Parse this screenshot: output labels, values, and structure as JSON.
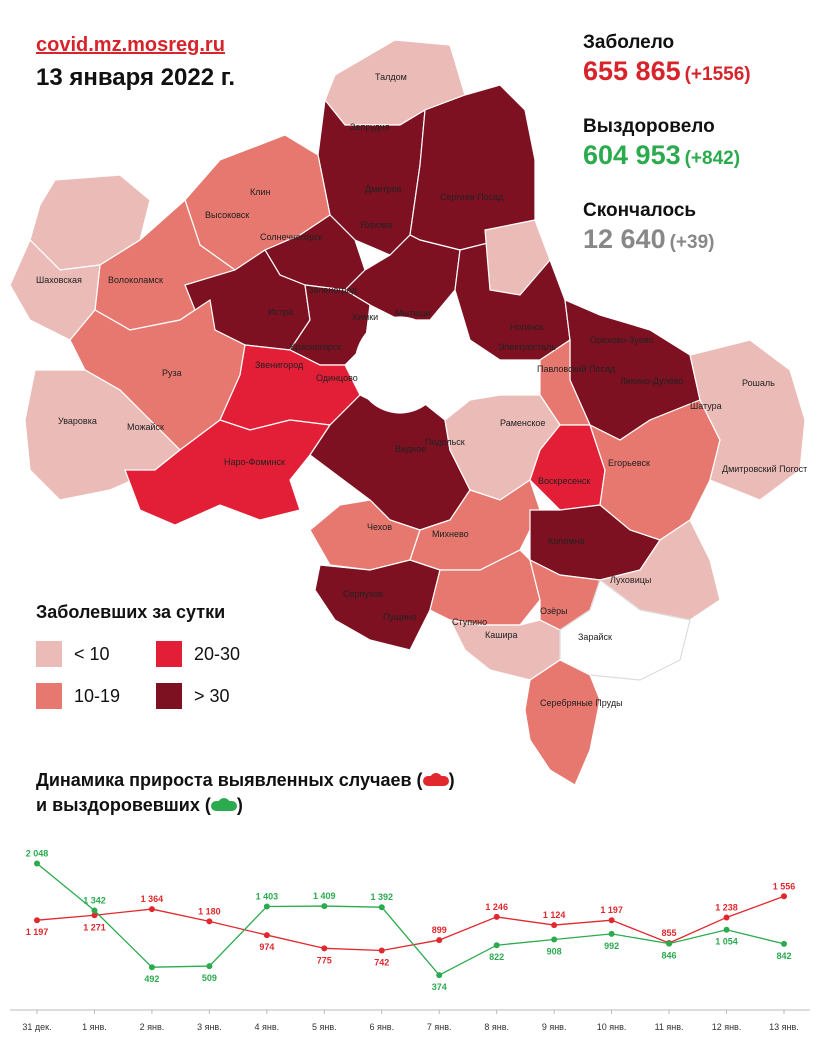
{
  "header": {
    "site": "covid.mz.mosreg.ru",
    "date": "13 января 2022 г."
  },
  "stats": {
    "infected_label": "Заболело",
    "infected_value": "655 865",
    "infected_delta": "(+1556)",
    "recovered_label": "Выздоровело",
    "recovered_value": "604 953",
    "recovered_delta": "(+842)",
    "deaths_label": "Скончалось",
    "deaths_value": "12 640",
    "deaths_delta": "(+39)"
  },
  "colors": {
    "red": "#d7242b",
    "green": "#2bab4e",
    "gray": "#888888",
    "lt10": "#ebbcb7",
    "r10_19": "#e6786f",
    "r20_30": "#e21f36",
    "gt30": "#7e1121"
  },
  "map": {
    "towns": [
      "Талдом",
      "Запрудня",
      "Дмитров",
      "Сергиев Посад",
      "Клин",
      "Высоковск",
      "Яхрома",
      "Солнечногорск",
      "Шаховская",
      "Волоколамск",
      "Зеленоград",
      "Истра",
      "Химки",
      "Мытищи",
      "Ногинск",
      "Электросталь",
      "Красногорск",
      "Звенигород",
      "Одинцово",
      "Орехово-Зуево",
      "Павловский Посад",
      "Ликино-Дулёво",
      "Руза",
      "Рошаль",
      "Шатура",
      "Уваровка",
      "Можайск",
      "Раменское",
      "Наро-Фоминск",
      "Видное",
      "Подольск",
      "Воскресенск",
      "Егорьевск",
      "Дмитровский Погост",
      "Чехов",
      "Михнево",
      "Коломна",
      "Луховицы",
      "Серпухов",
      "Пущино",
      "Ступино",
      "Озёры",
      "Кашира",
      "Зарайск",
      "Серебряные Пруды"
    ]
  },
  "legend": {
    "title": "Заболевших за сутки",
    "items": [
      {
        "label": "< 10",
        "color": "#ebbcb7"
      },
      {
        "label": "20-30",
        "color": "#e21f36"
      },
      {
        "label": "10-19",
        "color": "#e6786f"
      },
      {
        "label": "> 30",
        "color": "#7e1121"
      }
    ]
  },
  "dynamics_title": {
    "line1": "Динамика прироста выявленных случаев (",
    "line2": "и выздоровевших ("
  },
  "chart_data": {
    "type": "line",
    "categories": [
      "31 дек.",
      "1 янв.",
      "2 янв.",
      "3 янв.",
      "4 янв.",
      "5 янв.",
      "6 янв.",
      "7 янв.",
      "8 янв.",
      "9 янв.",
      "10 янв.",
      "11 янв.",
      "12 янв.",
      "13 янв."
    ],
    "series": [
      {
        "color": "#e0282e",
        "values": [
          1197,
          1271,
          1364,
          1180,
          974,
          775,
          742,
          899,
          1246,
          1124,
          1197,
          855,
          1238,
          1556
        ],
        "labels": [
          "1 197",
          "1 271",
          "1 364",
          "1 180",
          "974",
          "775",
          "742",
          "899",
          "1 246",
          "1 124",
          "1 197",
          "855",
          "1 238",
          "1 556"
        ]
      },
      {
        "color": "#2bab4e",
        "values": [
          2048,
          1342,
          492,
          509,
          1403,
          1409,
          1392,
          374,
          822,
          908,
          992,
          846,
          1054,
          842
        ],
        "labels": [
          "2 048",
          "1 342",
          "492",
          "509",
          "1 403",
          "1 409",
          "1 392",
          "374",
          "822",
          "908",
          "992",
          "846",
          "1 054",
          "842"
        ]
      }
    ],
    "title": "",
    "xlabel": "",
    "ylabel": "",
    "ylim": [
      300,
      2100
    ],
    "grid": false
  }
}
